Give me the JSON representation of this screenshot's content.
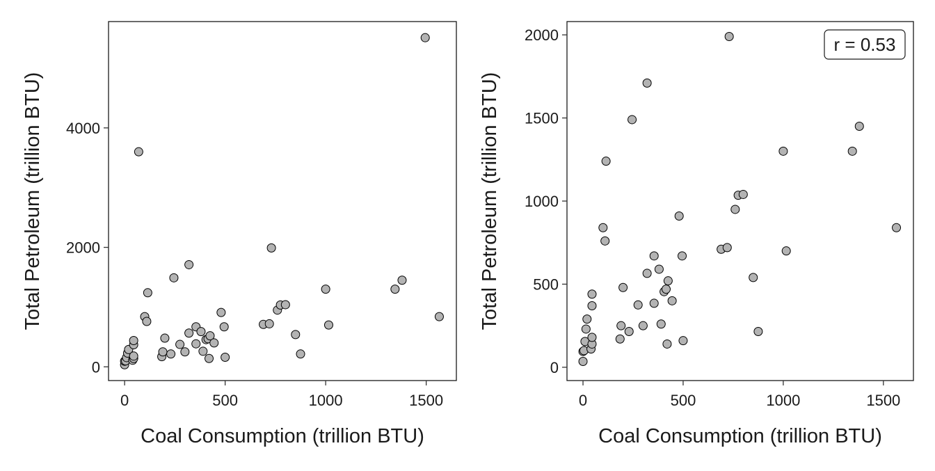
{
  "chart_data": [
    {
      "type": "scatter",
      "xlabel": "Coal Consumption (trillion BTU)",
      "ylabel": "Total Petroleum (trillion BTU)",
      "xlim": [
        -80,
        1650
      ],
      "ylim": [
        -230,
        5780
      ],
      "xticks": [
        0,
        500,
        1000,
        1500
      ],
      "yticks": [
        0,
        2000,
        4000
      ],
      "grid": false,
      "marker_fill": "#b3b3b3",
      "marker_edge": "#000000",
      "points": [
        {
          "x": 0,
          "y": 35
        },
        {
          "x": 0,
          "y": 95
        },
        {
          "x": 5,
          "y": 100
        },
        {
          "x": 10,
          "y": 155
        },
        {
          "x": 15,
          "y": 230
        },
        {
          "x": 20,
          "y": 290
        },
        {
          "x": 40,
          "y": 110
        },
        {
          "x": 45,
          "y": 140
        },
        {
          "x": 45,
          "y": 180
        },
        {
          "x": 45,
          "y": 370
        },
        {
          "x": 45,
          "y": 440
        },
        {
          "x": 70,
          "y": 3600
        },
        {
          "x": 100,
          "y": 840
        },
        {
          "x": 110,
          "y": 760
        },
        {
          "x": 115,
          "y": 1240
        },
        {
          "x": 185,
          "y": 170
        },
        {
          "x": 190,
          "y": 250
        },
        {
          "x": 200,
          "y": 480
        },
        {
          "x": 230,
          "y": 215
        },
        {
          "x": 245,
          "y": 1490
        },
        {
          "x": 275,
          "y": 375
        },
        {
          "x": 300,
          "y": 250
        },
        {
          "x": 320,
          "y": 1710
        },
        {
          "x": 320,
          "y": 565
        },
        {
          "x": 355,
          "y": 385
        },
        {
          "x": 355,
          "y": 670
        },
        {
          "x": 380,
          "y": 590
        },
        {
          "x": 390,
          "y": 260
        },
        {
          "x": 405,
          "y": 455
        },
        {
          "x": 415,
          "y": 470
        },
        {
          "x": 420,
          "y": 140
        },
        {
          "x": 425,
          "y": 520
        },
        {
          "x": 445,
          "y": 400
        },
        {
          "x": 480,
          "y": 910
        },
        {
          "x": 495,
          "y": 670
        },
        {
          "x": 500,
          "y": 160
        },
        {
          "x": 690,
          "y": 710
        },
        {
          "x": 720,
          "y": 720
        },
        {
          "x": 730,
          "y": 1990
        },
        {
          "x": 760,
          "y": 950
        },
        {
          "x": 775,
          "y": 1035
        },
        {
          "x": 800,
          "y": 1040
        },
        {
          "x": 850,
          "y": 540
        },
        {
          "x": 875,
          "y": 215
        },
        {
          "x": 1000,
          "y": 1300
        },
        {
          "x": 1015,
          "y": 700
        },
        {
          "x": 1345,
          "y": 1300
        },
        {
          "x": 1380,
          "y": 1450
        },
        {
          "x": 1495,
          "y": 5510
        },
        {
          "x": 1565,
          "y": 840
        }
      ]
    },
    {
      "type": "scatter",
      "xlabel": "Coal Consumption (trillion BTU)",
      "ylabel": "Total Petroleum (trillion BTU)",
      "xlim": [
        -80,
        1650
      ],
      "ylim": [
        -80,
        2080
      ],
      "xticks": [
        0,
        500,
        1000,
        1500
      ],
      "yticks": [
        0,
        500,
        1000,
        1500,
        2000
      ],
      "grid": false,
      "annotation": {
        "text": "r = 0.53",
        "position": "top-right"
      },
      "marker_fill": "#b3b3b3",
      "marker_edge": "#000000",
      "points": [
        {
          "x": 0,
          "y": 35
        },
        {
          "x": 0,
          "y": 95
        },
        {
          "x": 5,
          "y": 100
        },
        {
          "x": 10,
          "y": 155
        },
        {
          "x": 15,
          "y": 230
        },
        {
          "x": 20,
          "y": 290
        },
        {
          "x": 40,
          "y": 110
        },
        {
          "x": 45,
          "y": 140
        },
        {
          "x": 45,
          "y": 180
        },
        {
          "x": 45,
          "y": 370
        },
        {
          "x": 45,
          "y": 440
        },
        {
          "x": 100,
          "y": 840
        },
        {
          "x": 110,
          "y": 760
        },
        {
          "x": 115,
          "y": 1240
        },
        {
          "x": 185,
          "y": 170
        },
        {
          "x": 190,
          "y": 250
        },
        {
          "x": 200,
          "y": 480
        },
        {
          "x": 230,
          "y": 215
        },
        {
          "x": 245,
          "y": 1490
        },
        {
          "x": 275,
          "y": 375
        },
        {
          "x": 300,
          "y": 250
        },
        {
          "x": 320,
          "y": 1710
        },
        {
          "x": 320,
          "y": 565
        },
        {
          "x": 355,
          "y": 385
        },
        {
          "x": 355,
          "y": 670
        },
        {
          "x": 380,
          "y": 590
        },
        {
          "x": 390,
          "y": 260
        },
        {
          "x": 405,
          "y": 455
        },
        {
          "x": 415,
          "y": 470
        },
        {
          "x": 420,
          "y": 140
        },
        {
          "x": 425,
          "y": 520
        },
        {
          "x": 445,
          "y": 400
        },
        {
          "x": 480,
          "y": 910
        },
        {
          "x": 495,
          "y": 670
        },
        {
          "x": 500,
          "y": 160
        },
        {
          "x": 690,
          "y": 710
        },
        {
          "x": 720,
          "y": 720
        },
        {
          "x": 730,
          "y": 1990
        },
        {
          "x": 760,
          "y": 950
        },
        {
          "x": 775,
          "y": 1035
        },
        {
          "x": 800,
          "y": 1040
        },
        {
          "x": 850,
          "y": 540
        },
        {
          "x": 875,
          "y": 215
        },
        {
          "x": 1000,
          "y": 1300
        },
        {
          "x": 1015,
          "y": 700
        },
        {
          "x": 1345,
          "y": 1300
        },
        {
          "x": 1380,
          "y": 1450
        },
        {
          "x": 1565,
          "y": 840
        }
      ]
    }
  ]
}
